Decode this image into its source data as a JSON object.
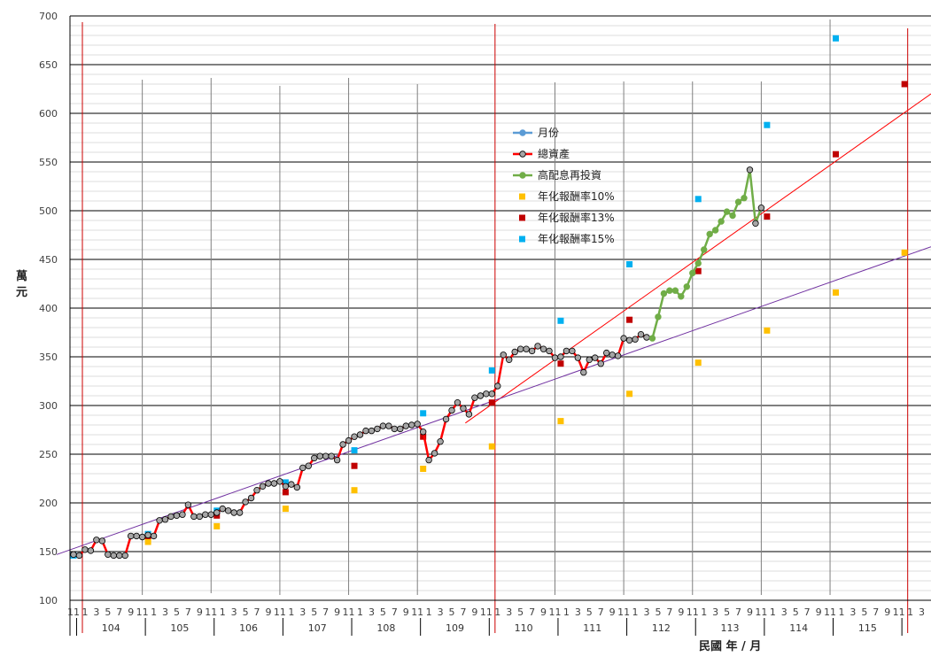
{
  "chart_data": {
    "type": "line",
    "ylabel": "萬元",
    "xlabel": "民國 年 / 月",
    "ylim": [
      100,
      700
    ],
    "yticks": [
      100,
      150,
      200,
      250,
      300,
      350,
      400,
      450,
      500,
      550,
      600,
      650,
      700
    ],
    "grid": true,
    "legend_position": "right-center",
    "years": [
      "104",
      "105",
      "106",
      "107",
      "108",
      "109",
      "110",
      "111",
      "112",
      "113",
      "114",
      "115"
    ],
    "month_tick_labels": [
      "11",
      "1",
      "3",
      "5",
      "7",
      "9",
      "11"
    ],
    "legend": [
      "月份",
      "總資產",
      "高配息再投資",
      "年化報酬率10%",
      "年化報酬率13%",
      "年化報酬率15%"
    ],
    "colors": {
      "total_assets_line": "#ff0000",
      "total_assets_marker": "#a6a6a6",
      "high_dividend": "#70ad47",
      "month": "#5b9bd5",
      "rate10": "#ffc000",
      "rate13": "#c00000",
      "rate15": "#00b0f0",
      "trend_red": "#ff0000",
      "trend_purple": "#7030a0",
      "year_line_gray": "#808080",
      "year_line_red": "#cc0000"
    },
    "series": [
      {
        "name": "總資產",
        "start": "103/11",
        "values": [
          147,
          146,
          152,
          151,
          162,
          161,
          147,
          146,
          146,
          146,
          166,
          166,
          165,
          167,
          166,
          182,
          183,
          186,
          187,
          188,
          198,
          186,
          186,
          188,
          188,
          190,
          194,
          192,
          190,
          190,
          201,
          205,
          213,
          217,
          220,
          220,
          222,
          217,
          219,
          216,
          236,
          238,
          246,
          248,
          248,
          248,
          244,
          260,
          264,
          268,
          270,
          274,
          274,
          276,
          279,
          279,
          276,
          276,
          279,
          280,
          281,
          273,
          244,
          251,
          263,
          286,
          295,
          303,
          297,
          291,
          308,
          310,
          312,
          312,
          320,
          352,
          347,
          355,
          358,
          358,
          356,
          361,
          358,
          356,
          349,
          350,
          356,
          356,
          349,
          334,
          347,
          349,
          343,
          354,
          352,
          351,
          369,
          367,
          368,
          373,
          370
        ]
      },
      {
        "name": "高配息再投資",
        "start": "112/04",
        "values": [
          369,
          391,
          415,
          418,
          418,
          412,
          422,
          436,
          446,
          460,
          476,
          480,
          489,
          499,
          495,
          509,
          513,
          542,
          487,
          503
        ]
      },
      {
        "name": "年化報酬率10%",
        "points": [
          [
            "104/12",
            160
          ],
          [
            "105/12",
            176
          ],
          [
            "106/12",
            194
          ],
          [
            "107/12",
            213
          ],
          [
            "108/12",
            235
          ],
          [
            "109/12",
            258
          ],
          [
            "110/12",
            284
          ],
          [
            "111/12",
            312
          ],
          [
            "112/12",
            344
          ],
          [
            "113/12",
            377
          ],
          [
            "114/12",
            416
          ],
          [
            "115/12",
            457
          ]
        ]
      },
      {
        "name": "年化報酬率13%",
        "points": [
          [
            "104/12",
            166
          ],
          [
            "105/12",
            187
          ],
          [
            "106/12",
            211
          ],
          [
            "107/12",
            238
          ],
          [
            "108/12",
            268
          ],
          [
            "109/12",
            303
          ],
          [
            "110/12",
            343
          ],
          [
            "111/12",
            388
          ],
          [
            "112/12",
            438
          ],
          [
            "113/12",
            494
          ],
          [
            "114/12",
            558
          ],
          [
            "115/12",
            630
          ]
        ]
      },
      {
        "name": "年化報酬率15%",
        "points": [
          [
            "103/11",
            146
          ],
          [
            "104/12",
            168
          ],
          [
            "105/12",
            192
          ],
          [
            "106/12",
            221
          ],
          [
            "107/12",
            254
          ],
          [
            "108/12",
            292
          ],
          [
            "109/12",
            336
          ],
          [
            "110/12",
            387
          ],
          [
            "111/12",
            445
          ],
          [
            "112/12",
            512
          ],
          [
            "113/12",
            588
          ],
          [
            "114/12",
            677
          ]
        ]
      }
    ]
  }
}
